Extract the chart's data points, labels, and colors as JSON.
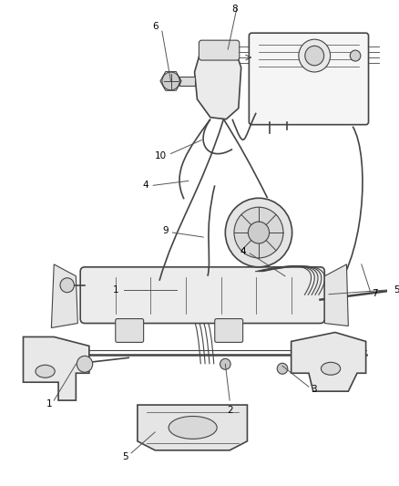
{
  "background_color": "#ffffff",
  "line_color": "#444444",
  "label_color": "#000000",
  "label_fontsize": 7.5,
  "fig_width": 4.39,
  "fig_height": 5.33,
  "dpi": 100
}
